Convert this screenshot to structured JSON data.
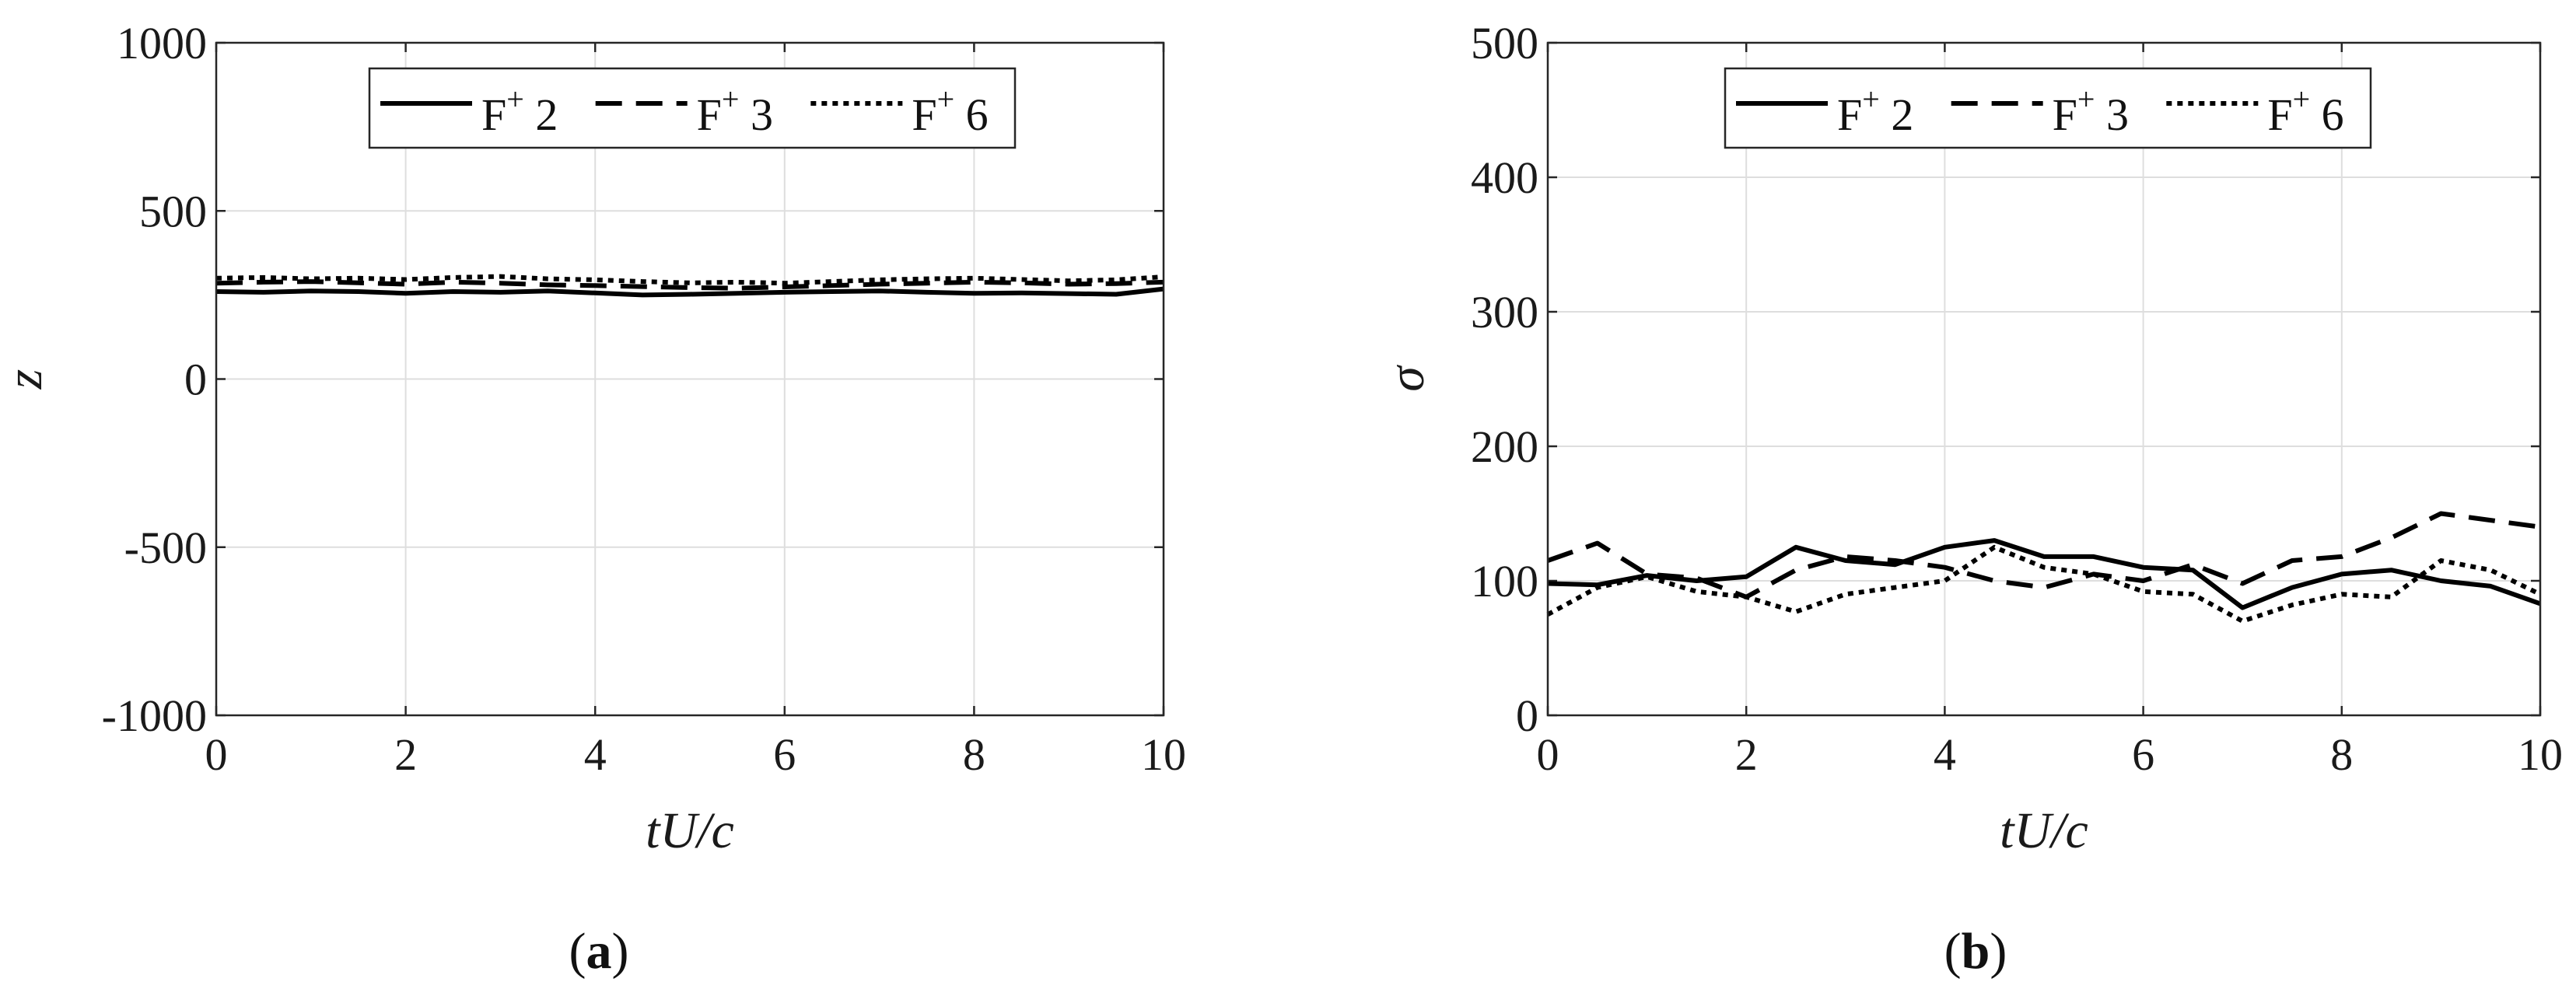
{
  "panels": [
    {
      "tag": "a",
      "chart_data": {
        "type": "line",
        "title": "",
        "xlabel": "tU/c",
        "ylabel": "z",
        "xlim": [
          0,
          10
        ],
        "ylim": [
          -1000,
          1000
        ],
        "xticks": [
          0,
          2,
          4,
          6,
          8,
          10
        ],
        "yticks": [
          -1000,
          -500,
          0,
          500,
          1000
        ],
        "grid": true,
        "legend": "top-center",
        "x": [
          0,
          0.5,
          1,
          1.5,
          2,
          2.5,
          3,
          3.5,
          4,
          4.5,
          5,
          5.5,
          6,
          6.5,
          7,
          7.5,
          8,
          8.5,
          9,
          9.5,
          10
        ],
        "series": [
          {
            "name": "F+ 2",
            "dash": "solid",
            "values": [
              260,
              258,
              262,
              260,
              255,
              260,
              258,
              262,
              256,
              250,
              252,
              255,
              258,
              260,
              262,
              258,
              255,
              256,
              254,
              252,
              268
            ]
          },
          {
            "name": "F+ 3",
            "dash": "dashed",
            "values": [
              285,
              288,
              290,
              286,
              282,
              288,
              285,
              280,
              278,
              275,
              272,
              270,
              274,
              278,
              282,
              285,
              288,
              286,
              282,
              284,
              288
            ]
          },
          {
            "name": "F+ 6",
            "dash": "dotted",
            "values": [
              300,
              302,
              298,
              300,
              296,
              302,
              305,
              298,
              295,
              290,
              286,
              288,
              285,
              290,
              295,
              298,
              300,
              296,
              292,
              295,
              304
            ]
          }
        ]
      }
    },
    {
      "tag": "b",
      "chart_data": {
        "type": "line",
        "title": "",
        "xlabel": "tU/c",
        "ylabel": "σ",
        "xlim": [
          0,
          10
        ],
        "ylim": [
          0,
          500
        ],
        "xticks": [
          0,
          2,
          4,
          6,
          8,
          10
        ],
        "yticks": [
          0,
          100,
          200,
          300,
          400,
          500
        ],
        "grid": true,
        "legend": "top-center",
        "x": [
          0,
          0.5,
          1,
          1.5,
          2,
          2.5,
          3,
          3.5,
          4,
          4.5,
          5,
          5.5,
          6,
          6.5,
          7,
          7.5,
          8,
          8.5,
          9,
          9.5,
          10
        ],
        "series": [
          {
            "name": "F+ 2",
            "dash": "solid",
            "values": [
              98,
              97,
              104,
              100,
              103,
              125,
              115,
              112,
              125,
              130,
              118,
              118,
              110,
              108,
              80,
              95,
              105,
              108,
              100,
              96,
              83
            ]
          },
          {
            "name": "F+ 3",
            "dash": "dashed",
            "values": [
              115,
              128,
              105,
              102,
              88,
              108,
              118,
              115,
              110,
              100,
              95,
              105,
              100,
              112,
              98,
              115,
              118,
              132,
              150,
              145,
              140
            ]
          },
          {
            "name": "F+ 6",
            "dash": "dotted",
            "values": [
              75,
              95,
              103,
              92,
              88,
              77,
              90,
              95,
              100,
              125,
              110,
              105,
              92,
              90,
              70,
              82,
              90,
              88,
              115,
              108,
              90
            ]
          }
        ]
      }
    }
  ]
}
